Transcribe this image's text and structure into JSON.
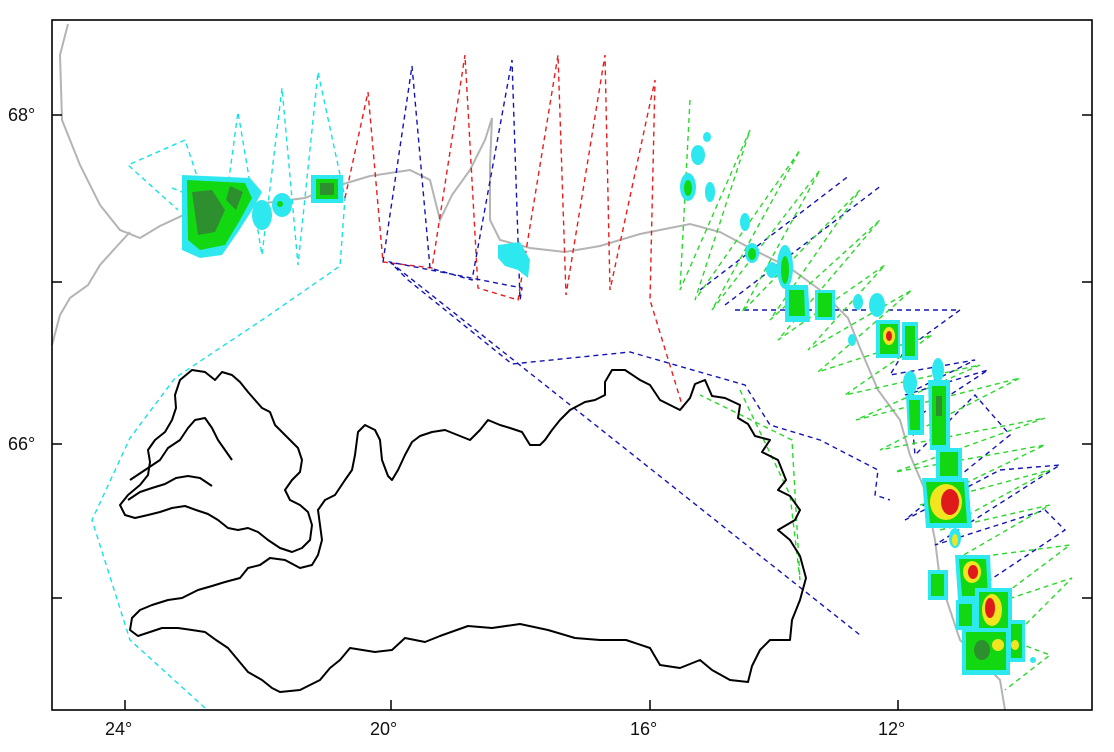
{
  "map": {
    "longitude_labels": [
      "24°",
      "20°",
      "16°",
      "12°"
    ],
    "latitude_labels": [
      "68°",
      "66°"
    ]
  },
  "colors": {
    "track_cyan": "#16e1e6",
    "track_red": "#e81d1d",
    "track_blue": "#1414b4",
    "track_green": "#29d829",
    "density_low": "#2de8ee",
    "density_mid": "#12d812",
    "density_high": "#2e8f2e",
    "density_peak_yellow": "#f2e51f",
    "density_peak_red": "#e0191b",
    "coastline": "#000000",
    "shelf_edge": "#b4b4b4"
  }
}
